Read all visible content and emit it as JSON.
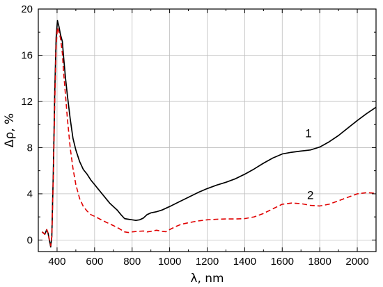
{
  "chart_data": {
    "type": "line",
    "title": "",
    "xlabel": "λ, nm",
    "ylabel": "Δρ, %",
    "xlim": [
      300,
      2100
    ],
    "ylim": [
      -1,
      20
    ],
    "x_ticks": [
      400,
      600,
      800,
      1000,
      1200,
      1400,
      1600,
      1800,
      2000
    ],
    "y_ticks": [
      0,
      4,
      8,
      12,
      16,
      20
    ],
    "x_minor_step": 100,
    "y_minor_step": 2,
    "grid": true,
    "legend": "none",
    "series": [
      {
        "label": "1",
        "label_at": [
          1740,
          8.9
        ],
        "color": "#000000",
        "dash": "solid",
        "points": [
          [
            320,
            0.7
          ],
          [
            335,
            0.5
          ],
          [
            345,
            0.9
          ],
          [
            352,
            0.6
          ],
          [
            360,
            -0.1
          ],
          [
            366,
            -0.6
          ],
          [
            372,
            0.3
          ],
          [
            380,
            6.0
          ],
          [
            388,
            13.0
          ],
          [
            395,
            17.5
          ],
          [
            402,
            19.0
          ],
          [
            410,
            18.5
          ],
          [
            418,
            17.8
          ],
          [
            428,
            17.2
          ],
          [
            435,
            15.8
          ],
          [
            445,
            14.0
          ],
          [
            455,
            12.5
          ],
          [
            470,
            10.5
          ],
          [
            485,
            8.8
          ],
          [
            500,
            7.8
          ],
          [
            520,
            6.8
          ],
          [
            540,
            6.1
          ],
          [
            560,
            5.7
          ],
          [
            580,
            5.2
          ],
          [
            600,
            4.8
          ],
          [
            620,
            4.4
          ],
          [
            650,
            3.8
          ],
          [
            680,
            3.2
          ],
          [
            700,
            2.9
          ],
          [
            720,
            2.6
          ],
          [
            740,
            2.2
          ],
          [
            760,
            1.85
          ],
          [
            780,
            1.8
          ],
          [
            800,
            1.75
          ],
          [
            820,
            1.7
          ],
          [
            840,
            1.75
          ],
          [
            860,
            1.9
          ],
          [
            880,
            2.2
          ],
          [
            900,
            2.35
          ],
          [
            930,
            2.45
          ],
          [
            960,
            2.6
          ],
          [
            1000,
            2.9
          ],
          [
            1050,
            3.3
          ],
          [
            1100,
            3.7
          ],
          [
            1150,
            4.1
          ],
          [
            1200,
            4.45
          ],
          [
            1250,
            4.75
          ],
          [
            1300,
            5.0
          ],
          [
            1350,
            5.3
          ],
          [
            1400,
            5.7
          ],
          [
            1450,
            6.15
          ],
          [
            1500,
            6.65
          ],
          [
            1550,
            7.1
          ],
          [
            1600,
            7.45
          ],
          [
            1650,
            7.6
          ],
          [
            1700,
            7.7
          ],
          [
            1750,
            7.8
          ],
          [
            1800,
            8.05
          ],
          [
            1850,
            8.5
          ],
          [
            1900,
            9.05
          ],
          [
            1950,
            9.7
          ],
          [
            2000,
            10.35
          ],
          [
            2050,
            10.95
          ],
          [
            2100,
            11.5
          ]
        ]
      },
      {
        "label": "2",
        "label_at": [
          1750,
          3.55
        ],
        "color": "#e00000",
        "dash": "dashed",
        "points": [
          [
            320,
            0.7
          ],
          [
            335,
            0.5
          ],
          [
            345,
            0.9
          ],
          [
            352,
            0.6
          ],
          [
            360,
            -0.1
          ],
          [
            366,
            -0.5
          ],
          [
            372,
            0.3
          ],
          [
            380,
            5.5
          ],
          [
            388,
            12.0
          ],
          [
            395,
            16.8
          ],
          [
            402,
            18.4
          ],
          [
            410,
            18.0
          ],
          [
            418,
            17.5
          ],
          [
            428,
            16.2
          ],
          [
            435,
            14.5
          ],
          [
            445,
            12.5
          ],
          [
            455,
            10.5
          ],
          [
            470,
            8.0
          ],
          [
            485,
            6.2
          ],
          [
            500,
            4.8
          ],
          [
            520,
            3.6
          ],
          [
            540,
            2.9
          ],
          [
            560,
            2.5
          ],
          [
            580,
            2.2
          ],
          [
            600,
            2.05
          ],
          [
            630,
            1.8
          ],
          [
            660,
            1.55
          ],
          [
            700,
            1.25
          ],
          [
            730,
            1.0
          ],
          [
            760,
            0.7
          ],
          [
            780,
            0.65
          ],
          [
            800,
            0.7
          ],
          [
            830,
            0.75
          ],
          [
            860,
            0.78
          ],
          [
            880,
            0.7
          ],
          [
            900,
            0.75
          ],
          [
            930,
            0.85
          ],
          [
            960,
            0.75
          ],
          [
            980,
            0.72
          ],
          [
            1000,
            0.9
          ],
          [
            1030,
            1.15
          ],
          [
            1060,
            1.35
          ],
          [
            1100,
            1.5
          ],
          [
            1150,
            1.65
          ],
          [
            1200,
            1.75
          ],
          [
            1250,
            1.8
          ],
          [
            1300,
            1.82
          ],
          [
            1350,
            1.82
          ],
          [
            1400,
            1.85
          ],
          [
            1450,
            2.0
          ],
          [
            1500,
            2.3
          ],
          [
            1550,
            2.7
          ],
          [
            1600,
            3.1
          ],
          [
            1650,
            3.2
          ],
          [
            1700,
            3.15
          ],
          [
            1750,
            3.0
          ],
          [
            1800,
            2.95
          ],
          [
            1850,
            3.1
          ],
          [
            1900,
            3.4
          ],
          [
            1950,
            3.7
          ],
          [
            2000,
            4.0
          ],
          [
            2050,
            4.1
          ],
          [
            2100,
            4.05
          ]
        ]
      }
    ]
  }
}
